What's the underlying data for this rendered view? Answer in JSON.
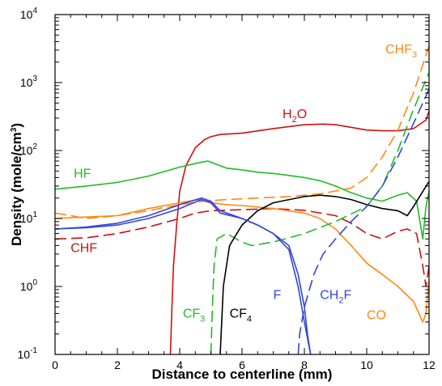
{
  "chart_data": {
    "type": "line",
    "xlabel": "Distance to centerline (mm)",
    "ylabel_main": "Density (mole/cm",
    "ylabel_sup": "3",
    "ylabel_close": ")",
    "y_scale": "log",
    "xlim": [
      0,
      12
    ],
    "ylim": [
      0.1,
      10000
    ],
    "x_ticks": [
      0,
      2,
      4,
      6,
      8,
      10,
      12
    ],
    "y_ticks": [
      {
        "value": 0.1,
        "base": "10",
        "exp": "-1"
      },
      {
        "value": 1,
        "base": "10",
        "exp": "0"
      },
      {
        "value": 10,
        "base": "10",
        "exp": "1"
      },
      {
        "value": 100,
        "base": "10",
        "exp": "2"
      },
      {
        "value": 1000,
        "base": "10",
        "exp": "3"
      },
      {
        "value": 10000,
        "base": "10",
        "exp": "4"
      }
    ],
    "grid": false,
    "legend": "inline labels",
    "series": [
      {
        "name": "H2O",
        "label_main": "H",
        "label_sub": "2",
        "label_tail": "O",
        "color": "#cc1111",
        "dash": "solid",
        "points": [
          [
            3.7,
            0.1
          ],
          [
            3.75,
            0.5
          ],
          [
            3.8,
            2
          ],
          [
            3.9,
            8
          ],
          [
            4.0,
            25
          ],
          [
            4.2,
            60
          ],
          [
            4.5,
            110
          ],
          [
            4.8,
            145
          ],
          [
            5.0,
            160
          ],
          [
            5.3,
            172
          ],
          [
            6,
            180
          ],
          [
            7,
            210
          ],
          [
            8,
            240
          ],
          [
            8.6,
            245
          ],
          [
            9,
            240
          ],
          [
            10,
            200
          ],
          [
            10.5,
            195
          ],
          [
            11,
            195
          ],
          [
            11.5,
            210
          ],
          [
            11.9,
            280
          ],
          [
            12,
            380
          ]
        ]
      },
      {
        "name": "HF",
        "label_main": "HF",
        "label_sub": "",
        "label_tail": "",
        "color": "#22bb22",
        "dash": "solid",
        "points": [
          [
            0,
            27
          ],
          [
            1,
            30
          ],
          [
            2,
            34
          ],
          [
            3,
            42
          ],
          [
            4,
            57
          ],
          [
            4.6,
            66
          ],
          [
            4.9,
            70
          ],
          [
            5.2,
            62
          ],
          [
            5.5,
            55
          ],
          [
            6,
            52
          ],
          [
            6.5,
            48
          ],
          [
            7,
            46
          ],
          [
            7.5,
            43
          ],
          [
            8,
            40
          ],
          [
            8.5,
            36
          ],
          [
            9,
            30
          ],
          [
            9.5,
            24
          ],
          [
            10,
            20
          ],
          [
            10.5,
            18
          ],
          [
            11,
            22
          ],
          [
            11.3,
            24
          ],
          [
            11.6,
            18
          ],
          [
            11.8,
            5
          ],
          [
            11.9,
            15
          ],
          [
            12,
            25
          ]
        ]
      },
      {
        "name": "CHF3",
        "label_main": "CHF",
        "label_sub": "3",
        "label_tail": "",
        "color": "#ff8811",
        "dash": "dashed",
        "points": [
          [
            0,
            12
          ],
          [
            0.5,
            11
          ],
          [
            1,
            10
          ],
          [
            2,
            11
          ],
          [
            3,
            13
          ],
          [
            4,
            16
          ],
          [
            4.8,
            18
          ],
          [
            5.5,
            19
          ],
          [
            6.5,
            20
          ],
          [
            7.5,
            21
          ],
          [
            8.5,
            23
          ],
          [
            9.5,
            28
          ],
          [
            10,
            40
          ],
          [
            10.5,
            80
          ],
          [
            11,
            200
          ],
          [
            11.5,
            700
          ],
          [
            12,
            3500
          ]
        ]
      },
      {
        "name": "CHF",
        "label_main": "CHF",
        "label_sub": "",
        "label_tail": "",
        "color": "#cc1111",
        "dash": "dashed",
        "points": [
          [
            0,
            5
          ],
          [
            1,
            5.2
          ],
          [
            2,
            6
          ],
          [
            3,
            7.5
          ],
          [
            4,
            10
          ],
          [
            4.5,
            12
          ],
          [
            5,
            13
          ],
          [
            6,
            13.5
          ],
          [
            7,
            14
          ],
          [
            8,
            13.2
          ],
          [
            9,
            11
          ],
          [
            9.5,
            8.5
          ],
          [
            10,
            6
          ],
          [
            10.5,
            5
          ],
          [
            11,
            6.5
          ],
          [
            11.3,
            7
          ],
          [
            11.6,
            6
          ],
          [
            11.8,
            2
          ],
          [
            11.9,
            1
          ],
          [
            12,
            2
          ]
        ]
      },
      {
        "name": "CO",
        "label_main": "CO",
        "label_sub": "",
        "label_tail": "",
        "color": "#ff8811",
        "dash": "solid",
        "points": [
          [
            0,
            10
          ],
          [
            1,
            10.5
          ],
          [
            2,
            11
          ],
          [
            3,
            14
          ],
          [
            4,
            17
          ],
          [
            4.6,
            19
          ],
          [
            5,
            17
          ],
          [
            5.5,
            16
          ],
          [
            6,
            15.5
          ],
          [
            7,
            14
          ],
          [
            8,
            12
          ],
          [
            8.5,
            10
          ],
          [
            9,
            7
          ],
          [
            9.5,
            4
          ],
          [
            10,
            2.2
          ],
          [
            10.5,
            1.5
          ],
          [
            11,
            1
          ],
          [
            11.5,
            0.6
          ],
          [
            11.8,
            0.3
          ],
          [
            11.9,
            0.4
          ],
          [
            12,
            1.2
          ]
        ]
      },
      {
        "name": "blue",
        "label_main": "",
        "label_sub": "",
        "label_tail": "",
        "color": "#3344dd",
        "dash": "solid",
        "points": [
          [
            0,
            7
          ],
          [
            1,
            7.5
          ],
          [
            2,
            8.5
          ],
          [
            3,
            11
          ],
          [
            4,
            16
          ],
          [
            4.7,
            20
          ],
          [
            5,
            18
          ],
          [
            5.3,
            13
          ],
          [
            6,
            10
          ],
          [
            6.5,
            8
          ],
          [
            7,
            6
          ],
          [
            7.5,
            4
          ],
          [
            7.8,
            1.5
          ],
          [
            8,
            0.5
          ],
          [
            8.1,
            0.2
          ],
          [
            8.2,
            0.1
          ]
        ]
      },
      {
        "name": "CF3",
        "label_main": "CF",
        "label_sub": "3",
        "label_tail": "",
        "color": "#22bb22",
        "dash": "dashed",
        "points": [
          [
            5.0,
            0.1
          ],
          [
            5.05,
            0.5
          ],
          [
            5.1,
            2
          ],
          [
            5.2,
            5
          ],
          [
            5.5,
            6
          ],
          [
            6,
            4.5
          ],
          [
            6.3,
            4
          ],
          [
            7,
            4.5
          ],
          [
            8,
            6
          ],
          [
            9,
            9
          ],
          [
            10,
            15
          ],
          [
            10.5,
            30
          ],
          [
            11,
            100
          ],
          [
            11.5,
            400
          ],
          [
            12,
            1400
          ]
        ]
      },
      {
        "name": "CF4",
        "label_main": "CF",
        "label_sub": "4",
        "label_tail": "",
        "color": "#000000",
        "dash": "solid",
        "points": [
          [
            5.3,
            0.1
          ],
          [
            5.4,
            1
          ],
          [
            5.6,
            4
          ],
          [
            6,
            8
          ],
          [
            6.5,
            13
          ],
          [
            7,
            17
          ],
          [
            8,
            21
          ],
          [
            8.5,
            22
          ],
          [
            9,
            21
          ],
          [
            9.5,
            19
          ],
          [
            10,
            16
          ],
          [
            10.5,
            14
          ],
          [
            11,
            13
          ],
          [
            11.3,
            11
          ],
          [
            11.5,
            15
          ],
          [
            11.8,
            25
          ],
          [
            12,
            35
          ]
        ]
      },
      {
        "name": "CH2F",
        "label_main": "CH",
        "label_sub": "2",
        "label_tail": "F",
        "color": "#3344dd",
        "dash": "dashed",
        "points": [
          [
            7.8,
            0.1
          ],
          [
            7.85,
            0.2
          ],
          [
            8,
            0.5
          ],
          [
            8.3,
            1.5
          ],
          [
            8.6,
            3
          ],
          [
            9,
            5
          ],
          [
            9.5,
            9
          ],
          [
            10,
            15
          ],
          [
            10.5,
            30
          ],
          [
            11,
            80
          ],
          [
            11.5,
            250
          ],
          [
            12,
            800
          ]
        ]
      },
      {
        "name": "F",
        "label_main": "F",
        "label_sub": "",
        "label_tail": "",
        "color": "#3344dd",
        "dash": "solid",
        "points": [
          [
            0,
            7
          ],
          [
            1,
            7.3
          ],
          [
            2,
            8
          ],
          [
            3,
            10
          ],
          [
            4,
            14
          ],
          [
            4.7,
            19
          ],
          [
            5,
            17
          ],
          [
            5.3,
            12
          ],
          [
            6,
            10
          ],
          [
            6.5,
            8
          ],
          [
            7,
            6
          ],
          [
            7.5,
            3.5
          ],
          [
            7.8,
            1
          ],
          [
            8,
            0.3
          ],
          [
            8.2,
            0.1
          ]
        ]
      }
    ],
    "labels": [
      {
        "text_main": "H",
        "sub": "2",
        "tail": "O",
        "color": "#cc1111",
        "x": 7.3,
        "y": 300
      },
      {
        "text_main": "HF",
        "sub": "",
        "tail": "",
        "color": "#22bb22",
        "x": 0.6,
        "y": 40
      },
      {
        "text_main": "CHF",
        "sub": "3",
        "tail": "",
        "color": "#ff8811",
        "x": 10.6,
        "y": 2700
      },
      {
        "text_main": "CHF",
        "sub": "",
        "tail": "",
        "color": "#cc1111",
        "x": 0.5,
        "y": 3.2
      },
      {
        "text_main": "CF",
        "sub": "3",
        "tail": "",
        "color": "#22bb22",
        "x": 4.1,
        "y": 0.35
      },
      {
        "text_main": "CF",
        "sub": "4",
        "tail": "",
        "color": "#000000",
        "x": 5.6,
        "y": 0.35
      },
      {
        "text_main": "F",
        "sub": "",
        "tail": "",
        "color": "#3344dd",
        "x": 7.0,
        "y": 0.65
      },
      {
        "text_main": "CH",
        "sub": "2",
        "tail": "F",
        "color": "#3344dd",
        "x": 8.5,
        "y": 0.65
      },
      {
        "text_main": "CO",
        "sub": "",
        "tail": "",
        "color": "#ff8811",
        "x": 10.0,
        "y": 0.33
      }
    ]
  }
}
